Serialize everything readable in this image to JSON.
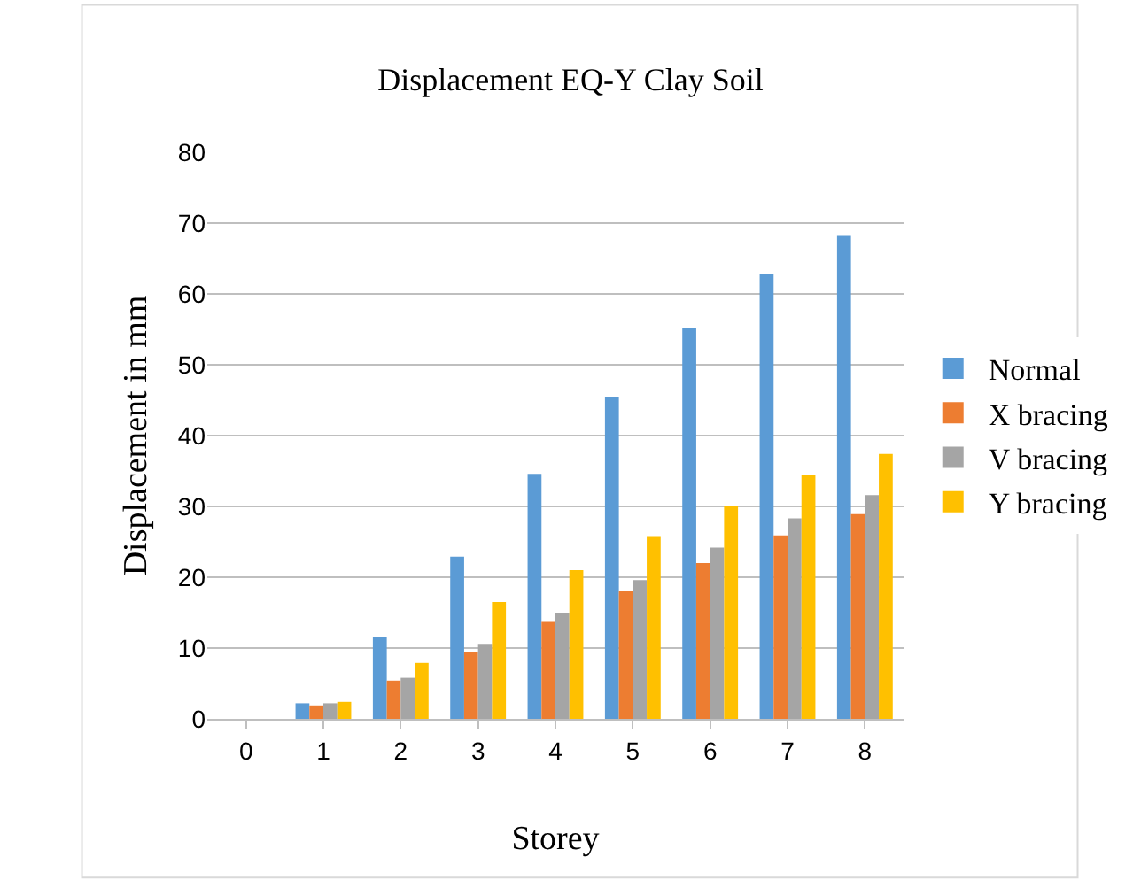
{
  "chart_data": {
    "type": "bar",
    "title": "Displacement EQ-Y Clay Soil",
    "xlabel": "Storey",
    "ylabel": "Displacement in mm",
    "categories": [
      "0",
      "1",
      "2",
      "3",
      "4",
      "5",
      "6",
      "7",
      "8"
    ],
    "series": [
      {
        "name": "Normal",
        "color": "#5b9bd5",
        "values": [
          0,
          2.2,
          11.6,
          22.9,
          34.6,
          45.5,
          55.2,
          62.8,
          68.2
        ]
      },
      {
        "name": "X bracing",
        "color": "#ed7d31",
        "values": [
          0,
          1.9,
          5.4,
          9.4,
          13.7,
          18.0,
          22.0,
          25.9,
          28.9
        ]
      },
      {
        "name": "V bracing",
        "color": "#a5a5a5",
        "values": [
          0,
          2.2,
          5.8,
          10.6,
          15.0,
          19.6,
          24.2,
          28.3,
          31.6
        ]
      },
      {
        "name": "Y bracing",
        "color": "#ffc000",
        "values": [
          0,
          2.4,
          7.9,
          16.5,
          21.0,
          25.7,
          30.0,
          34.4,
          37.4
        ]
      }
    ],
    "ylim": [
      0,
      80
    ],
    "yticks": [
      0,
      10,
      20,
      30,
      40,
      50,
      60,
      70,
      80
    ],
    "grid": "y",
    "legend": "right"
  }
}
